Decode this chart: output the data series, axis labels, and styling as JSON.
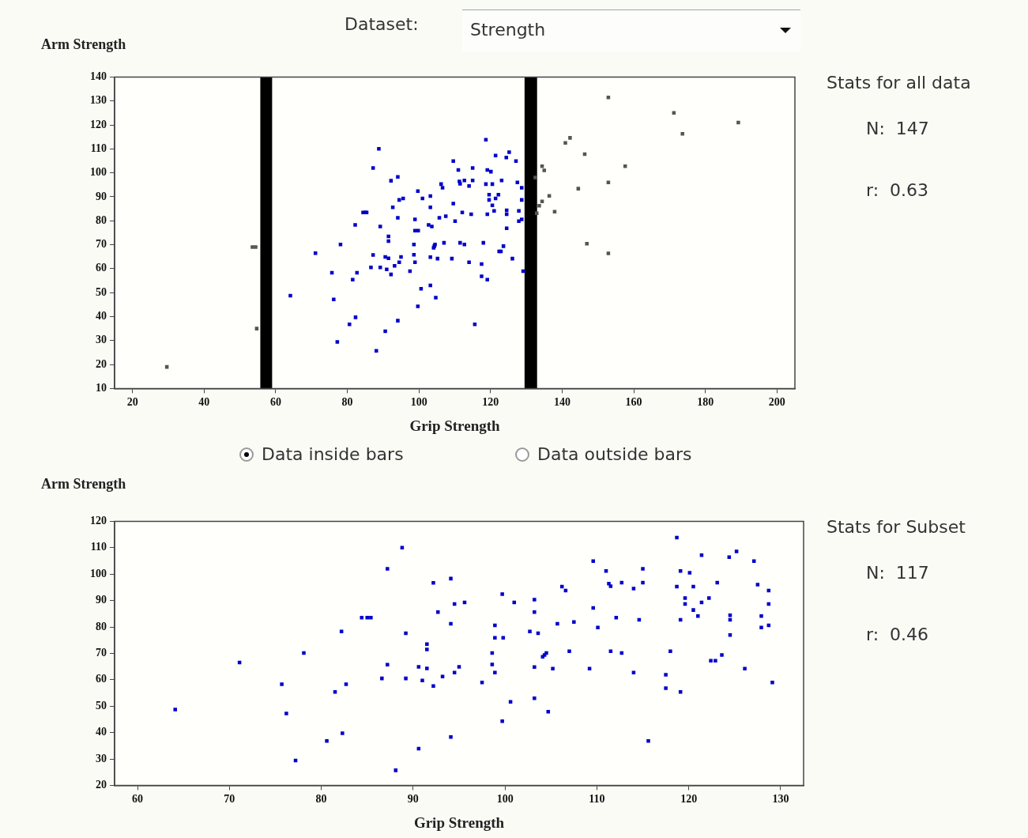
{
  "chart_data": [
    {
      "type": "scatter",
      "ylabel": "Arm Strength",
      "xlabel": "Grip Strength",
      "xlim": [
        15,
        205
      ],
      "ylim": [
        10,
        140
      ],
      "xticks": [
        20,
        40,
        60,
        80,
        100,
        120,
        140,
        160,
        180,
        200
      ],
      "yticks": [
        10,
        20,
        30,
        40,
        50,
        60,
        70,
        80,
        90,
        100,
        110,
        120,
        130,
        140
      ],
      "marker": "square",
      "grid": false,
      "bands": [
        {
          "axis": "x",
          "from": 55.7,
          "to": 59,
          "color": "#000000"
        },
        {
          "axis": "x",
          "from": 129.5,
          "to": 133,
          "color": "#000000"
        }
      ],
      "annotations": [
        "Dataset:",
        "Strength",
        "Stats for all data",
        "N:  147",
        "r:  0.63",
        "Data inside bars",
        "Data outside bars"
      ],
      "series": [
        {
          "color": "#0000cc",
          "x": [
            88.8,
            87.2,
            92.2,
            94.1,
            94.5,
            95.6,
            92.7,
            94.1,
            84.4,
            85,
            85.4,
            82.2,
            89.2,
            91.5,
            91.5,
            78.1,
            71.1,
            87.2,
            90.6,
            91.5,
            95,
            94.5,
            93.2,
            86.6,
            89.2,
            91,
            92.2,
            75.7,
            82.7,
            81.5,
            64.1,
            76.2,
            94.1,
            82.3,
            80.6,
            90.6,
            77.2,
            88.1,
            118.7,
            121.4,
            124.4,
            125.2,
            127.1,
            109.6,
            111,
            115,
            119.1,
            120.1,
            111.5,
            111.3,
            112.7,
            114,
            115,
            118.7,
            120.5,
            123.1,
            127.5,
            128.7,
            128.7,
            106.2,
            106.6,
            99.7,
            101,
            103.2,
            103.2,
            109.6,
            119.6,
            119.6,
            122.2,
            121.4,
            120.5,
            121,
            124.5,
            124.5,
            127.9,
            128.7,
            127.9,
            119.1,
            124.5,
            112.1,
            114.6,
            110.1,
            107.5,
            105.7,
            98.9,
            98.9,
            99.8,
            102.7,
            103.6,
            98.6,
            98.6,
            98.9,
            97.5,
            104.1,
            104.5,
            104.3,
            103.2,
            105.2,
            107,
            109.2,
            111.5,
            112.7,
            114,
            118,
            117.5,
            117.5,
            119.1,
            115.6,
            122.4,
            122.9,
            123.6,
            126.1,
            129.1,
            100.6,
            99.7,
            103.2,
            104.7
          ],
          "values": [
            110,
            102,
            96.7,
            98.3,
            88.7,
            89.3,
            85.6,
            81.2,
            83.5,
            83.5,
            83.5,
            78.3,
            77.6,
            73.5,
            71.5,
            70.1,
            66.5,
            65.7,
            64.9,
            64.3,
            64.9,
            62.7,
            61.2,
            60.5,
            60.5,
            59.7,
            57.6,
            58.3,
            58.3,
            55.4,
            48.7,
            47.2,
            38.3,
            39.7,
            36.8,
            33.9,
            29.4,
            25.7,
            113.8,
            107.2,
            106.4,
            108.6,
            104.9,
            104.9,
            101.2,
            102,
            101.2,
            100.5,
            95.4,
            96.4,
            96.8,
            94.5,
            96.8,
            95.3,
            95.3,
            96.8,
            96,
            93.8,
            88.7,
            95.3,
            93.8,
            92.4,
            89.3,
            90.3,
            85.6,
            87.2,
            90.9,
            88.7,
            90.9,
            89.3,
            86.4,
            84.1,
            84.4,
            82.7,
            84.1,
            80.6,
            79.8,
            82.7,
            76.9,
            83.5,
            82.7,
            79.8,
            81.9,
            81.2,
            80.6,
            75.9,
            75.9,
            78.3,
            77.6,
            70.1,
            65.8,
            62.7,
            59,
            68.7,
            70.1,
            69.4,
            64.8,
            64.2,
            70.8,
            64.2,
            70.8,
            70.1,
            62.7,
            70.8,
            61.9,
            56.8,
            55.4,
            36.8,
            67.2,
            67.2,
            69.4,
            64.2,
            59,
            51.6,
            44.3,
            53,
            47.9
          ]
        },
        {
          "color": "#555555",
          "x": [
            29.6,
            54.4,
            53.5,
            54.7,
            152.9,
            171.2,
            189.2,
            173.6,
            142.2,
            140.9,
            146.3,
            157.6,
            152.9,
            144.5,
            134.4,
            135,
            132.5,
            136.4,
            134.4,
            133.6,
            137.9,
            132.9,
            146.9,
            152.9
          ],
          "values": [
            19,
            69,
            69,
            35,
            131.5,
            125,
            121,
            116.3,
            114.6,
            112.5,
            107.8,
            102.8,
            96,
            93.4,
            102.8,
            101,
            98.1,
            90.4,
            88.1,
            86.3,
            83.8,
            83.1,
            70.4,
            66.4
          ]
        }
      ]
    },
    {
      "type": "scatter",
      "ylabel": "Arm Strength",
      "xlabel": "Grip Strength",
      "xlim": [
        57.5,
        132.5
      ],
      "ylim": [
        20,
        120
      ],
      "xticks": [
        60,
        70,
        80,
        90,
        100,
        110,
        120,
        130
      ],
      "yticks": [
        20,
        30,
        40,
        50,
        60,
        70,
        80,
        90,
        100,
        110,
        120
      ],
      "marker": "square",
      "grid": false,
      "annotations": [
        "Stats for Subset",
        "N:  117",
        "r:  0.46"
      ],
      "series": [
        {
          "color": "#0000cc",
          "x": [
            88.8,
            87.2,
            92.2,
            94.1,
            94.5,
            95.6,
            92.7,
            94.1,
            84.4,
            85,
            85.4,
            82.2,
            89.2,
            91.5,
            91.5,
            78.1,
            71.1,
            87.2,
            90.6,
            91.5,
            95,
            94.5,
            93.2,
            86.6,
            89.2,
            91,
            92.2,
            75.7,
            82.7,
            81.5,
            64.1,
            76.2,
            94.1,
            82.3,
            80.6,
            90.6,
            77.2,
            88.1,
            118.7,
            121.4,
            124.4,
            125.2,
            127.1,
            109.6,
            111,
            115,
            119.1,
            120.1,
            111.5,
            111.3,
            112.7,
            114,
            115,
            118.7,
            120.5,
            123.1,
            127.5,
            128.7,
            128.7,
            106.2,
            106.6,
            99.7,
            101,
            103.2,
            103.2,
            109.6,
            119.6,
            119.6,
            122.2,
            121.4,
            120.5,
            121,
            124.5,
            124.5,
            127.9,
            128.7,
            127.9,
            119.1,
            124.5,
            112.1,
            114.6,
            110.1,
            107.5,
            105.7,
            98.9,
            98.9,
            99.8,
            102.7,
            103.6,
            98.6,
            98.6,
            98.9,
            97.5,
            104.1,
            104.5,
            104.3,
            103.2,
            105.2,
            107,
            109.2,
            111.5,
            112.7,
            114,
            118,
            117.5,
            117.5,
            119.1,
            115.6,
            122.4,
            122.9,
            123.6,
            126.1,
            129.1,
            100.6,
            99.7,
            103.2,
            104.7
          ],
          "values": [
            110,
            102,
            96.7,
            98.3,
            88.7,
            89.3,
            85.6,
            81.2,
            83.5,
            83.5,
            83.5,
            78.3,
            77.6,
            73.5,
            71.5,
            70.1,
            66.5,
            65.7,
            64.9,
            64.3,
            64.9,
            62.7,
            61.2,
            60.5,
            60.5,
            59.7,
            57.6,
            58.3,
            58.3,
            55.4,
            48.7,
            47.2,
            38.3,
            39.7,
            36.8,
            33.9,
            29.4,
            25.7,
            113.8,
            107.2,
            106.4,
            108.6,
            104.9,
            104.9,
            101.2,
            102,
            101.2,
            100.5,
            95.4,
            96.4,
            96.8,
            94.5,
            96.8,
            95.3,
            95.3,
            96.8,
            96,
            93.8,
            88.7,
            95.3,
            93.8,
            92.4,
            89.3,
            90.3,
            85.6,
            87.2,
            90.9,
            88.7,
            90.9,
            89.3,
            86.4,
            84.1,
            84.4,
            82.7,
            84.1,
            80.6,
            79.8,
            82.7,
            76.9,
            83.5,
            82.7,
            79.8,
            81.9,
            81.2,
            80.6,
            75.9,
            75.9,
            78.3,
            77.6,
            70.1,
            65.8,
            62.7,
            59,
            68.7,
            70.1,
            69.4,
            64.8,
            64.2,
            70.8,
            64.2,
            70.8,
            70.1,
            62.7,
            70.8,
            61.9,
            56.8,
            55.4,
            36.8,
            67.2,
            67.2,
            69.4,
            64.2,
            59,
            51.6,
            44.3,
            53,
            47.9
          ]
        }
      ]
    }
  ]
}
